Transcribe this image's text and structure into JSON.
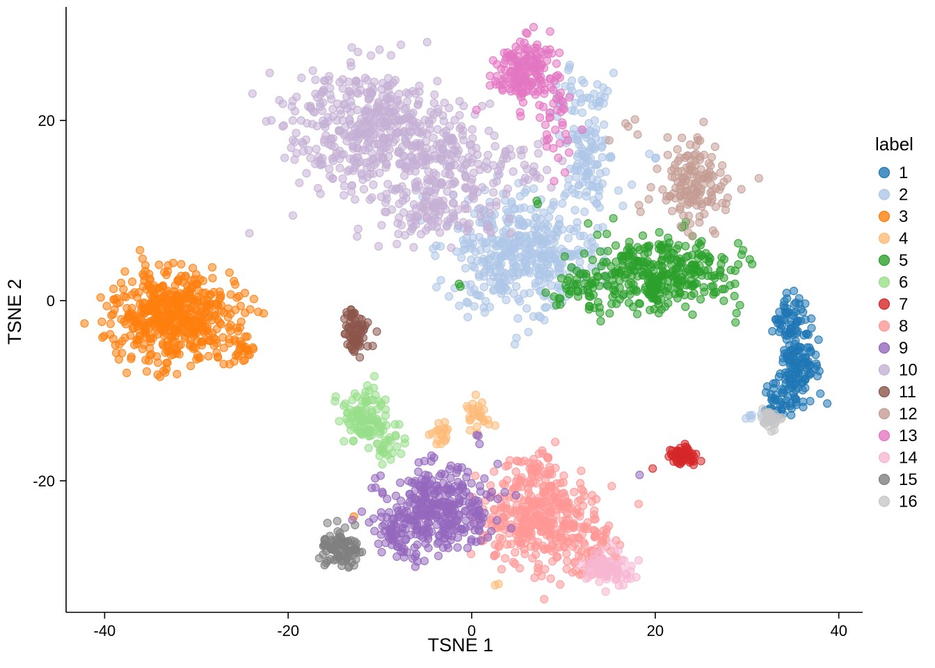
{
  "chart_data": {
    "type": "scatter",
    "title": "",
    "xlabel": "TSNE 1",
    "ylabel": "TSNE 2",
    "legend_title": "label",
    "legend_position": "right",
    "grid": false,
    "background": "#ffffff",
    "xlim": [
      -44.2,
      42.6
    ],
    "ylim": [
      -34.6,
      32.6
    ],
    "x_ticks": [
      -40,
      -20,
      0,
      20,
      40
    ],
    "y_ticks": [
      -20,
      0,
      20
    ],
    "point_radius_px": 5.5,
    "point_fill_opacity": 0.55,
    "point_stroke_opacity": 0.85,
    "series": [
      {
        "name": "1",
        "color": "#1f77b4",
        "blobs": [
          [
            34.6,
            -1.8,
            1.0,
            1.4,
            60
          ],
          [
            35.6,
            -7.2,
            1.2,
            1.8,
            110
          ],
          [
            33.6,
            -11.3,
            0.9,
            0.9,
            45
          ]
        ]
      },
      {
        "name": "2",
        "color": "#aec7e8",
        "blobs": [
          [
            5.1,
            5.2,
            4.2,
            3.2,
            420
          ],
          [
            12.7,
            16.0,
            1.4,
            3.6,
            110
          ],
          [
            11.5,
            22.5,
            1.5,
            1.8,
            30
          ],
          [
            19.8,
            15.6,
            0.4,
            0.4,
            3
          ],
          [
            30.8,
            -13.0,
            0.5,
            0.4,
            5
          ]
        ]
      },
      {
        "name": "3",
        "color": "#ff7f0e",
        "blobs": [
          [
            -32.4,
            -1.8,
            3.3,
            2.6,
            520
          ],
          [
            -24.8,
            -5.3,
            0.8,
            0.8,
            25
          ],
          [
            -12.6,
            -24.1,
            0.2,
            0.2,
            1
          ]
        ]
      },
      {
        "name": "4",
        "color": "#ffbb78",
        "blobs": [
          [
            0.5,
            -12.4,
            0.7,
            1.0,
            28
          ],
          [
            -3.4,
            -14.7,
            0.5,
            0.7,
            20
          ],
          [
            3.0,
            -31.4,
            0.3,
            0.3,
            2
          ]
        ]
      },
      {
        "name": "5",
        "color": "#2ca02c",
        "blobs": [
          [
            20.6,
            3.2,
            3.8,
            2.0,
            330
          ],
          [
            11.9,
            1.3,
            1.8,
            1.2,
            50
          ],
          [
            7.0,
            10.6,
            0.3,
            0.3,
            2
          ],
          [
            -1.0,
            1.7,
            0.3,
            0.3,
            2
          ]
        ]
      },
      {
        "name": "6",
        "color": "#98df8a",
        "blobs": [
          [
            -11.6,
            -13.0,
            1.3,
            1.6,
            110
          ],
          [
            -8.9,
            -16.4,
            0.8,
            0.8,
            25
          ]
        ]
      },
      {
        "name": "7",
        "color": "#d62728",
        "blobs": [
          [
            23.0,
            -17.2,
            0.7,
            0.45,
            55
          ],
          [
            19.5,
            -18.8,
            0.2,
            0.2,
            1
          ]
        ]
      },
      {
        "name": "8",
        "color": "#ff9896",
        "blobs": [
          [
            7.3,
            -24.2,
            3.2,
            2.8,
            380
          ],
          [
            13.4,
            -27.6,
            1.4,
            1.4,
            50
          ],
          [
            6.2,
            -18.4,
            1.5,
            0.8,
            30
          ]
        ]
      },
      {
        "name": "9",
        "color": "#9467bd",
        "blobs": [
          [
            -3.6,
            -23.4,
            3.0,
            2.3,
            330
          ],
          [
            -8.6,
            -25.3,
            1.0,
            1.2,
            40
          ],
          [
            0.9,
            -15.1,
            0.5,
            0.5,
            3
          ],
          [
            18.3,
            -19.2,
            0.2,
            0.2,
            1
          ]
        ]
      },
      {
        "name": "10",
        "color": "#c5b0d5",
        "blobs": [
          [
            -11.6,
            19.1,
            4.2,
            3.6,
            430
          ],
          [
            -2.5,
            15.2,
            3.2,
            2.8,
            180
          ],
          [
            -4.4,
            10.2,
            3.5,
            1.8,
            110
          ],
          [
            5.8,
            15.2,
            1.5,
            1.5,
            25
          ]
        ]
      },
      {
        "name": "11",
        "color": "#8c564b",
        "blobs": [
          [
            -12.7,
            -3.6,
            0.7,
            1.2,
            55
          ],
          [
            -13.1,
            -1.8,
            0.4,
            0.4,
            12
          ]
        ]
      },
      {
        "name": "12",
        "color": "#c49c94",
        "blobs": [
          [
            24.4,
            13.1,
            2.0,
            2.3,
            150
          ],
          [
            17.2,
            18.3,
            1.0,
            1.0,
            5
          ]
        ]
      },
      {
        "name": "13",
        "color": "#e377c2",
        "blobs": [
          [
            5.8,
            25.3,
            1.7,
            1.9,
            170
          ],
          [
            9.2,
            19.8,
            1.2,
            2.2,
            35
          ]
        ]
      },
      {
        "name": "14",
        "color": "#f7b6d2",
        "blobs": [
          [
            14.9,
            -29.8,
            1.4,
            1.0,
            75
          ]
        ]
      },
      {
        "name": "15",
        "color": "#7f7f7f",
        "blobs": [
          [
            -14.4,
            -27.6,
            1.2,
            1.1,
            85
          ]
        ]
      },
      {
        "name": "16",
        "color": "#c7c7c7",
        "blobs": [
          [
            32.6,
            -13.0,
            0.7,
            0.6,
            28
          ]
        ]
      }
    ]
  }
}
